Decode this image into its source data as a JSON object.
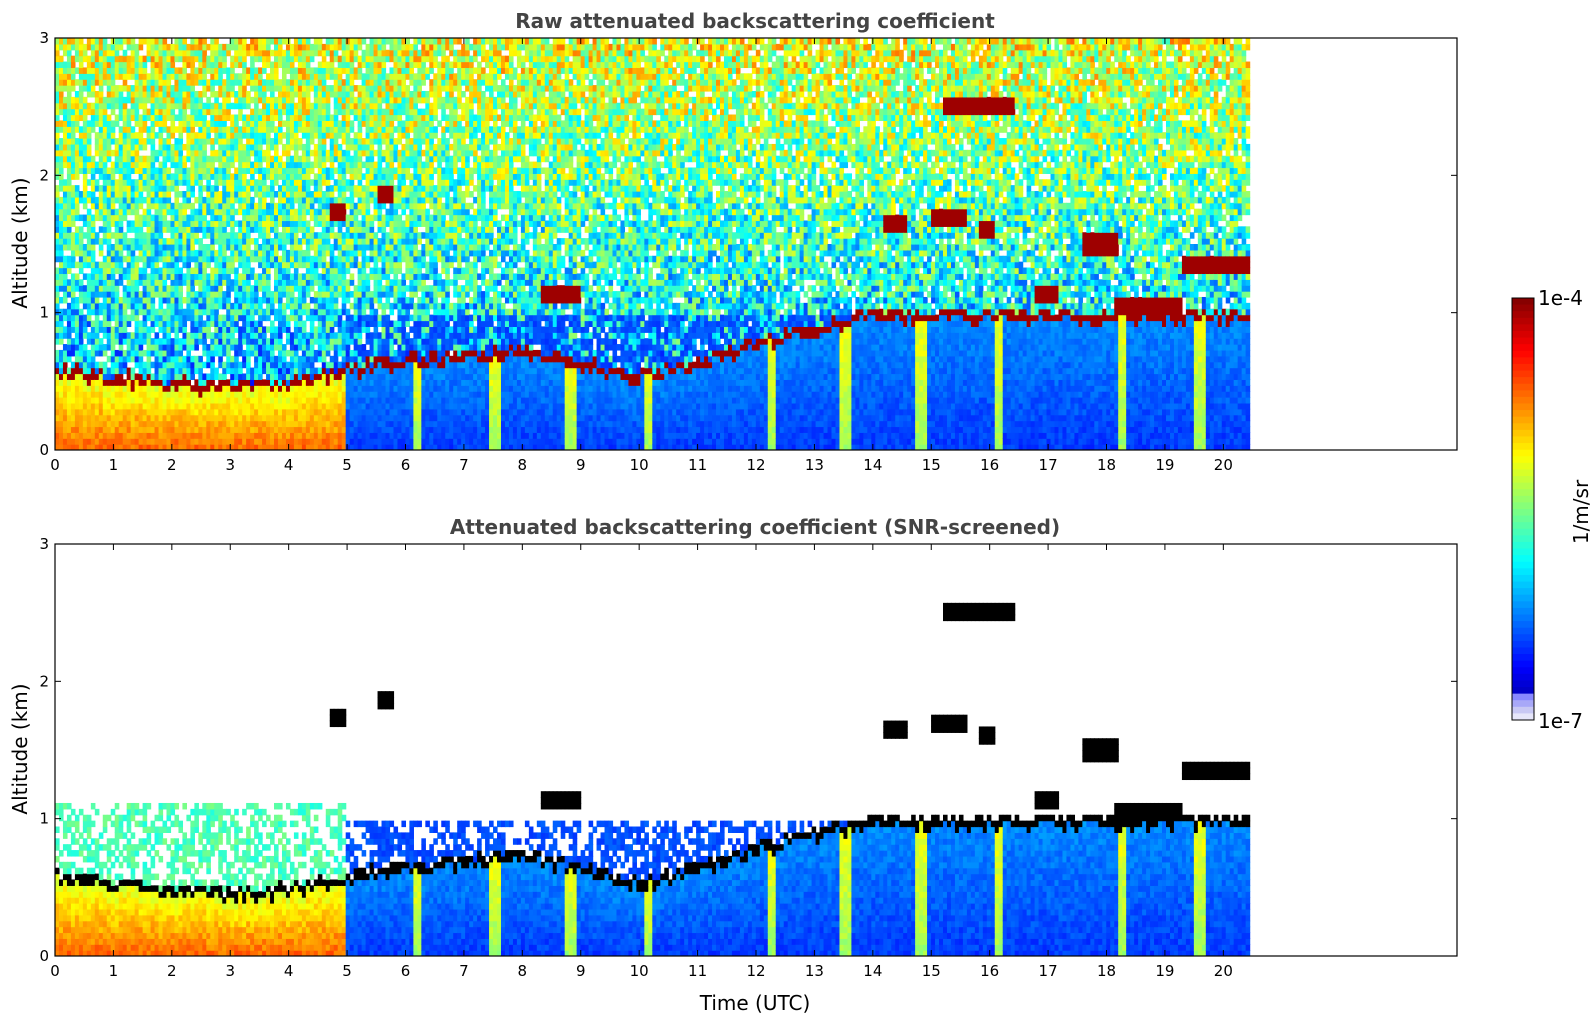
{
  "chart_data": [
    {
      "type": "heatmap",
      "title": "Raw attenuated backscattering coefficient",
      "xlabel": "",
      "ylabel": "Altitude (km)",
      "xlim": [
        0,
        24
      ],
      "ylim": [
        0,
        3
      ],
      "xticks": [
        "0",
        "1",
        "2",
        "3",
        "4",
        "5",
        "6",
        "7",
        "8",
        "9",
        "10",
        "11",
        "12",
        "13",
        "14",
        "15",
        "16",
        "17",
        "18",
        "19",
        "20"
      ],
      "yticks": [
        "0",
        "1",
        "2",
        "3"
      ],
      "data_end_time": 20.45,
      "screened": false,
      "boundary_layer_top_km": [
        {
          "t": 0,
          "z": 0.55
        },
        {
          "t": 1,
          "z": 0.5
        },
        {
          "t": 2,
          "z": 0.45
        },
        {
          "t": 3,
          "z": 0.42
        },
        {
          "t": 4,
          "z": 0.45
        },
        {
          "t": 5,
          "z": 0.55
        },
        {
          "t": 6,
          "z": 0.62
        },
        {
          "t": 7,
          "z": 0.65
        },
        {
          "t": 8,
          "z": 0.7
        },
        {
          "t": 9,
          "z": 0.6
        },
        {
          "t": 10,
          "z": 0.5
        },
        {
          "t": 11,
          "z": 0.6
        },
        {
          "t": 12,
          "z": 0.75
        },
        {
          "t": 13,
          "z": 0.85
        },
        {
          "t": 14,
          "z": 0.95
        }
      ],
      "cloud_layers": [
        {
          "t_start": 4.7,
          "t_end": 5.0,
          "z_km": 1.75
        },
        {
          "t_start": 5.5,
          "t_end": 5.8,
          "z_km": 1.85
        },
        {
          "t_start": 8.3,
          "t_end": 9.0,
          "z_km": 1.15
        },
        {
          "t_start": 14.2,
          "t_end": 14.6,
          "z_km": 1.65
        },
        {
          "t_start": 15.0,
          "t_end": 15.6,
          "z_km": 1.7
        },
        {
          "t_start": 15.8,
          "t_end": 16.1,
          "z_km": 1.62
        },
        {
          "t_start": 15.2,
          "t_end": 16.4,
          "z_km": 2.5
        },
        {
          "t_start": 16.8,
          "t_end": 17.2,
          "z_km": 1.15
        },
        {
          "t_start": 17.6,
          "t_end": 18.2,
          "z_km": 1.5
        },
        {
          "t_start": 18.1,
          "t_end": 19.3,
          "z_km": 1.05
        },
        {
          "t_start": 19.3,
          "t_end": 20.45,
          "z_km": 1.35
        }
      ]
    },
    {
      "type": "heatmap",
      "title": "Attenuated backscattering coefficient (SNR-screened)",
      "xlabel": "Time (UTC)",
      "ylabel": "Altitude (km)",
      "xlim": [
        0,
        24
      ],
      "ylim": [
        0,
        3
      ],
      "xticks": [
        "0",
        "1",
        "2",
        "3",
        "4",
        "5",
        "6",
        "7",
        "8",
        "9",
        "10",
        "11",
        "12",
        "13",
        "14",
        "15",
        "16",
        "17",
        "18",
        "19",
        "20"
      ],
      "yticks": [
        "0",
        "1",
        "2",
        "3"
      ],
      "data_end_time": 20.45,
      "screened": true
    }
  ],
  "colorbar": {
    "label": "1/m/sr",
    "max_label": "1e-4",
    "min_label": "1e-7",
    "scale": "log",
    "range": [
      1e-07,
      0.0001
    ],
    "colormap": "jet"
  },
  "colors": {
    "title": "#444444",
    "low": "#0a28ff",
    "high": "#800000",
    "background": "#ffffff"
  }
}
